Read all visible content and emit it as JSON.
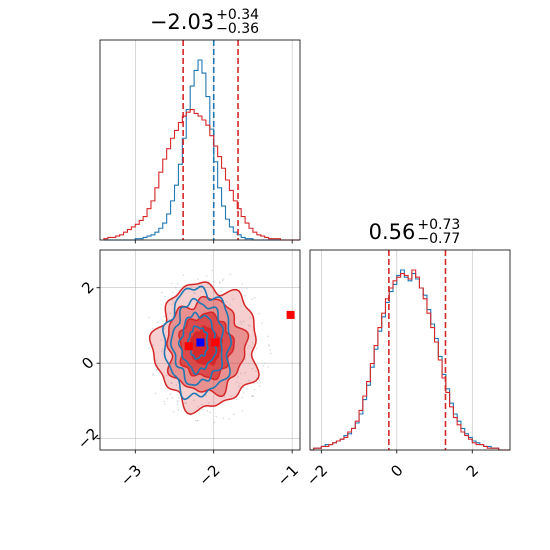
{
  "chart_data": [
    {
      "type": "histogram",
      "panel": "marginal-x",
      "title": {
        "value": "−2.03",
        "plus": "+0.34",
        "minus": "−0.36"
      },
      "xlim": [
        -3.45,
        -0.9
      ],
      "xticks": [
        -3,
        -2,
        -1
      ],
      "grid": true,
      "series": [
        {
          "color": "#1f77b4",
          "bin_edges_start": -3.4,
          "bin_width": 0.05,
          "counts": [
            0,
            0,
            0,
            0,
            0,
            0,
            0,
            0,
            1,
            1,
            2,
            3,
            4,
            6,
            9,
            13,
            20,
            30,
            42,
            58,
            78,
            100,
            118,
            130,
            138,
            128,
            110,
            85,
            60,
            40,
            26,
            16,
            10,
            6,
            4,
            2,
            1,
            1,
            0,
            0,
            0,
            0,
            0,
            0,
            0,
            0,
            0,
            0,
            0,
            0
          ],
          "quantile_lines": [
            -2.0
          ]
        },
        {
          "color": "#d62728",
          "bin_edges_start": -3.4,
          "bin_width": 0.05,
          "counts": [
            1,
            2,
            2,
            3,
            4,
            6,
            8,
            10,
            12,
            15,
            18,
            24,
            30,
            40,
            52,
            62,
            70,
            78,
            84,
            90,
            95,
            98,
            100,
            97,
            95,
            92,
            88,
            80,
            72,
            64,
            55,
            46,
            38,
            30,
            24,
            18,
            13,
            9,
            6,
            4,
            3,
            2,
            1,
            1,
            1,
            0,
            0,
            0,
            0,
            0
          ],
          "quantile_lines": [
            -2.39,
            -1.69
          ]
        }
      ]
    },
    {
      "type": "histogram",
      "panel": "marginal-y",
      "title": {
        "value": "0.56",
        "plus": "+0.73",
        "minus": "−0.77"
      },
      "xlim": [
        -2.3,
        3.0
      ],
      "xticks": [
        -2,
        0,
        2
      ],
      "grid": true,
      "series": [
        {
          "color": "#1f77b4",
          "bin_edges_start": -2.3,
          "bin_width": 0.1,
          "counts": [
            0,
            1,
            1,
            2,
            3,
            3,
            4,
            5,
            6,
            8,
            9,
            12,
            15,
            20,
            28,
            36,
            46,
            56,
            66,
            74,
            82,
            88,
            92,
            97,
            100,
            96,
            94,
            98,
            95,
            90,
            86,
            78,
            70,
            62,
            52,
            42,
            34,
            26,
            20,
            16,
            12,
            9,
            7,
            5,
            4,
            3,
            2,
            2,
            1,
            1,
            0,
            0,
            0
          ],
          "quantile_lines": []
        },
        {
          "color": "#d62728",
          "bin_edges_start": -2.3,
          "bin_width": 0.1,
          "counts": [
            0,
            1,
            1,
            2,
            2,
            3,
            4,
            5,
            6,
            7,
            10,
            12,
            16,
            22,
            30,
            38,
            48,
            58,
            68,
            76,
            84,
            90,
            94,
            96,
            98,
            97,
            95,
            100,
            96,
            90,
            84,
            76,
            68,
            60,
            50,
            40,
            32,
            24,
            18,
            14,
            10,
            8,
            6,
            4,
            3,
            3,
            2,
            1,
            1,
            1,
            0,
            0,
            0
          ],
          "quantile_lines": [
            -0.21,
            1.29
          ]
        }
      ]
    },
    {
      "type": "contour",
      "panel": "joint",
      "xlim": [
        -3.45,
        -0.9
      ],
      "ylim": [
        -2.3,
        3.0
      ],
      "xticks": [
        -3,
        -2,
        -1
      ],
      "yticks": [
        -2,
        0,
        2
      ],
      "grid": true,
      "series": [
        {
          "color": "#1f77b4",
          "filled": false,
          "center": [
            -2.2,
            0.55
          ],
          "spread": [
            0.22,
            0.75
          ],
          "levels": [
            0.55,
            1.0,
            1.45,
            1.9
          ],
          "marker": {
            "x": -2.17,
            "y": 0.55
          }
        },
        {
          "color": "#d62728",
          "filled": true,
          "center": [
            -2.1,
            0.45
          ],
          "spread": [
            0.32,
            0.8
          ],
          "levels": [
            0.6,
            1.05,
            1.55,
            2.05
          ],
          "markers": [
            {
              "x": -2.32,
              "y": 0.45
            },
            {
              "x": -1.98,
              "y": 0.55
            },
            {
              "x": -1.02,
              "y": 1.28
            }
          ]
        }
      ]
    }
  ]
}
